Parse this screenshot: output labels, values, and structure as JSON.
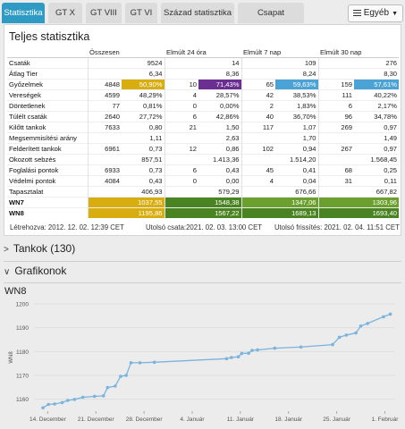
{
  "tabs": [
    {
      "label": "Statisztika",
      "active": true
    },
    {
      "label": "GT X"
    },
    {
      "label": "GT VIII"
    },
    {
      "label": "GT VI"
    },
    {
      "label": "Század statisztika"
    },
    {
      "label": "Csapat statisztika"
    }
  ],
  "menu": {
    "label": "Egyéb"
  },
  "panel_title": "Teljes statisztika",
  "columns": [
    "Összesen",
    "Elmúlt 24 óra",
    "Elmúlt 7 nap",
    "Elmúlt 30 nap"
  ],
  "rows": [
    {
      "label": "Csaták",
      "cells": [
        [
          "",
          "9524"
        ],
        [
          "",
          "14"
        ],
        [
          "",
          "109"
        ],
        [
          "",
          "276"
        ]
      ]
    },
    {
      "label": "Átlag Tier",
      "cells": [
        [
          "",
          "6,34"
        ],
        [
          "",
          "8,36"
        ],
        [
          "",
          "8,24"
        ],
        [
          "",
          "8,30"
        ]
      ]
    },
    {
      "label": "Győzelmek",
      "cells": [
        [
          "4848",
          "50,90%"
        ],
        [
          "10",
          "71,43%"
        ],
        [
          "65",
          "59,63%"
        ],
        [
          "159",
          "57,61%"
        ]
      ]
    },
    {
      "label": "Vereségek",
      "cells": [
        [
          "4599",
          "48,29%"
        ],
        [
          "4",
          "28,57%"
        ],
        [
          "42",
          "38,53%"
        ],
        [
          "111",
          "40,22%"
        ]
      ]
    },
    {
      "label": "Döntetlenek",
      "cells": [
        [
          "77",
          "0,81%"
        ],
        [
          "0",
          "0,00%"
        ],
        [
          "2",
          "1,83%"
        ],
        [
          "6",
          "2,17%"
        ]
      ]
    },
    {
      "label": "Túlélt csaták",
      "cells": [
        [
          "2640",
          "27,72%"
        ],
        [
          "6",
          "42,86%"
        ],
        [
          "40",
          "36,70%"
        ],
        [
          "96",
          "34,78%"
        ]
      ]
    },
    {
      "label": "Kilőtt tankok",
      "cells": [
        [
          "7633",
          "0,80"
        ],
        [
          "21",
          "1,50"
        ],
        [
          "117",
          "1,07"
        ],
        [
          "269",
          "0,97"
        ]
      ]
    },
    {
      "label": "Megsemmisítési arány",
      "cells": [
        [
          "",
          "1,11"
        ],
        [
          "",
          "2,63"
        ],
        [
          "",
          "1,70"
        ],
        [
          "",
          "1,49"
        ]
      ]
    },
    {
      "label": "Felderített tankok",
      "cells": [
        [
          "6961",
          "0,73"
        ],
        [
          "12",
          "0,86"
        ],
        [
          "102",
          "0,94"
        ],
        [
          "267",
          "0,97"
        ]
      ]
    },
    {
      "label": "Okozott sebzés",
      "cells": [
        [
          "",
          "857,51"
        ],
        [
          "",
          "1.413,36"
        ],
        [
          "",
          "1.514,20"
        ],
        [
          "",
          "1.568,45"
        ]
      ]
    },
    {
      "label": "Foglalási pontok",
      "cells": [
        [
          "6933",
          "0,73"
        ],
        [
          "6",
          "0,43"
        ],
        [
          "45",
          "0,41"
        ],
        [
          "68",
          "0,25"
        ]
      ]
    },
    {
      "label": "Védelmi pontok",
      "cells": [
        [
          "4084",
          "0,43"
        ],
        [
          "0",
          "0,00"
        ],
        [
          "4",
          "0,04"
        ],
        [
          "31",
          "0,11"
        ]
      ]
    },
    {
      "label": "Tapasztalat",
      "cells": [
        [
          "",
          "406,93"
        ],
        [
          "",
          "579,29"
        ],
        [
          "",
          "676,66"
        ],
        [
          "",
          "667,82"
        ]
      ]
    },
    {
      "label": "WN7",
      "cells": [
        [
          "",
          "1037,55"
        ],
        [
          "",
          "1548,38"
        ],
        [
          "",
          "1347,06"
        ],
        [
          "",
          "1303,96"
        ]
      ]
    },
    {
      "label": "WN8",
      "cells": [
        [
          "",
          "1195,86"
        ],
        [
          "",
          "1567,22"
        ],
        [
          "",
          "1689,13"
        ],
        [
          "",
          "1693,40"
        ]
      ]
    }
  ],
  "colors": {
    "tab_active": "#2f9ac3",
    "badge_yellow": "#d8ad10",
    "badge_purple": "#6b2e91",
    "badge_blue": "#4aa2d5",
    "badge_green": "#4a8422",
    "badge_lightgreen": "#6ba02e",
    "chart_line": "#7ab3dd"
  },
  "footer": {
    "created": "Létrehozva: 2012. 12. 02. 12:39 CET",
    "last_battle": "Utolsó csata:2021. 02. 03. 13:00 CET",
    "last_update": "Utolsó frissítés: 2021. 02. 04. 11:51 CET"
  },
  "sections": {
    "tanks": "Tankok (130)",
    "charts": "Grafikonok"
  },
  "chart_data": {
    "type": "line",
    "title": "WN8",
    "ylabel": "WN8",
    "ylim": [
      1155,
      1200
    ],
    "yticks": [
      1160,
      1170,
      1180,
      1190,
      1200
    ],
    "xticks": [
      "14. December",
      "21. December",
      "28. December",
      "4. Január",
      "11. Január",
      "18. Január",
      "25. Január",
      "1. Február"
    ],
    "x_day_range": [
      8,
      57
    ],
    "points": [
      [
        8.8,
        1156.4
      ],
      [
        9.6,
        1157.8
      ],
      [
        10.5,
        1158.0
      ],
      [
        11.6,
        1158.6
      ],
      [
        12.4,
        1159.5
      ],
      [
        13.4,
        1159.9
      ],
      [
        14.6,
        1160.8
      ],
      [
        16.3,
        1161.2
      ],
      [
        17.6,
        1161.4
      ],
      [
        18.2,
        1164.9
      ],
      [
        19.3,
        1165.5
      ],
      [
        20.1,
        1169.6
      ],
      [
        20.9,
        1170.0
      ],
      [
        21.6,
        1175.3
      ],
      [
        22.9,
        1175.3
      ],
      [
        25.0,
        1175.5
      ],
      [
        35.5,
        1177.0
      ],
      [
        36.2,
        1177.5
      ],
      [
        37.2,
        1177.8
      ],
      [
        37.7,
        1179.2
      ],
      [
        38.7,
        1179.3
      ],
      [
        39.2,
        1180.5
      ],
      [
        40.0,
        1180.7
      ],
      [
        42.5,
        1181.4
      ],
      [
        46.3,
        1181.9
      ],
      [
        50.9,
        1182.9
      ],
      [
        51.9,
        1186.0
      ],
      [
        52.9,
        1186.9
      ],
      [
        54.3,
        1187.8
      ],
      [
        55.0,
        1190.7
      ],
      [
        56.0,
        1191.8
      ],
      [
        58.3,
        1194.6
      ],
      [
        59.3,
        1195.7
      ]
    ]
  }
}
